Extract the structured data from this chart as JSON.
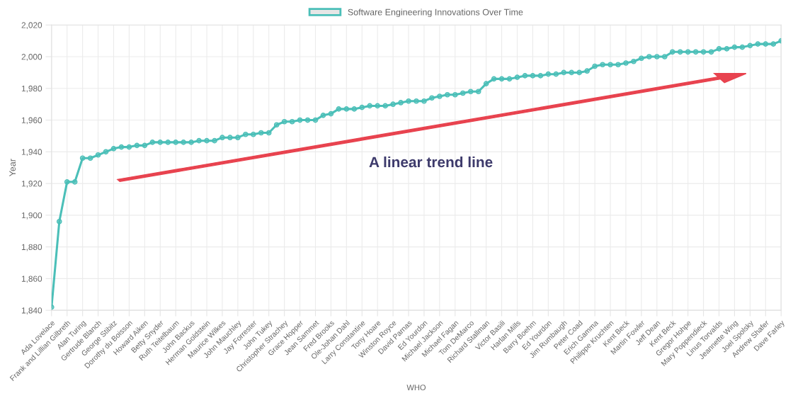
{
  "chart_data": {
    "type": "line",
    "categories": [
      "Ada Lovelace",
      null,
      "Frank and Lillian Gilbreth",
      null,
      "Alan Turing",
      null,
      "Gertrude Blanch",
      null,
      "George Stibitz",
      null,
      "Dorothy du Boisson",
      null,
      "Howard Aiken",
      null,
      "Betty Snyder",
      null,
      "Ruth Teitelbaum",
      null,
      "John Backus",
      null,
      "Herman Goldstein",
      null,
      "Maurice Wilkes",
      null,
      "John Mauchley",
      null,
      "Jay Forrester",
      null,
      "John Tukey",
      null,
      "Christopher Strachey",
      null,
      "Grace Hopper",
      null,
      "Jean Sammet",
      null,
      "Fred Brooks",
      null,
      "Ole-Johan Dahl",
      null,
      "Larry Constantine",
      null,
      "Tony Hoare",
      null,
      "Winston Royce",
      null,
      "David Parnas",
      null,
      "Ed Yourdon",
      null,
      "Michael Jackson",
      null,
      "Michael Fagan",
      null,
      "Tom DeMarco",
      null,
      "Richard Stallman",
      null,
      "Victor Basili",
      null,
      "Harlan Mills",
      null,
      "Barry Boehm",
      null,
      "Ed Yourdon",
      null,
      "Jim Rumbaugh",
      null,
      "Peter Coad",
      null,
      "Erich Gamma",
      null,
      "Philippe Kruchten",
      null,
      "Kent Beck",
      null,
      "Martin Fowler",
      null,
      "Jeff Dean",
      null,
      "Kent Beck",
      null,
      "Gregor Hohpe",
      null,
      "Mary Poppendieck",
      null,
      "Linus Torvalds",
      null,
      "Jeannette Wing",
      null,
      "Joel Spolsky",
      null,
      "Andrew Shafer",
      null,
      "Dave Farley"
    ],
    "series": [
      {
        "name": "Software Engineering Innovations Over Time",
        "color": "#4bbfb8",
        "values": [
          1842,
          1896,
          1921,
          1921,
          1936,
          1936,
          1938,
          1940,
          1942,
          1943,
          1943,
          1944,
          1944,
          1946,
          1946,
          1946,
          1946,
          1946,
          1946,
          1947,
          1947,
          1947,
          1949,
          1949,
          1949,
          1951,
          1951,
          1952,
          1952,
          1957,
          1959,
          1959,
          1960,
          1960,
          1960,
          1963,
          1964,
          1967,
          1967,
          1967,
          1968,
          1969,
          1969,
          1969,
          1970,
          1971,
          1972,
          1972,
          1972,
          1974,
          1975,
          1976,
          1976,
          1977,
          1978,
          1978,
          1983,
          1986,
          1986,
          1986,
          1987,
          1988,
          1988,
          1988,
          1989,
          1989,
          1990,
          1990,
          1990,
          1991,
          1994,
          1995,
          1995,
          1995,
          1996,
          1997,
          1999,
          2000,
          2000,
          2000,
          2003,
          2003,
          2003,
          2003,
          2003,
          2003,
          2005,
          2005,
          2006,
          2006,
          2007,
          2008,
          2008,
          2008,
          2010
        ]
      }
    ],
    "xlabel": "WHO",
    "ylabel": "Year",
    "ylim": [
      1840,
      2020
    ],
    "yticks": [
      {
        "value": 1840,
        "label": "1,840"
      },
      {
        "value": 1860,
        "label": "1,860"
      },
      {
        "value": 1880,
        "label": "1,880"
      },
      {
        "value": 1900,
        "label": "1,900"
      },
      {
        "value": 1920,
        "label": "1,920"
      },
      {
        "value": 1940,
        "label": "1,940"
      },
      {
        "value": 1960,
        "label": "1,960"
      },
      {
        "value": 1980,
        "label": "1,980"
      },
      {
        "value": 2000,
        "label": "2,000"
      },
      {
        "value": 2020,
        "label": "2,020"
      }
    ],
    "annotations": [
      "A linear trend line"
    ],
    "grid": true,
    "legend": "top",
    "marker": "circle",
    "line_style": "solid"
  }
}
